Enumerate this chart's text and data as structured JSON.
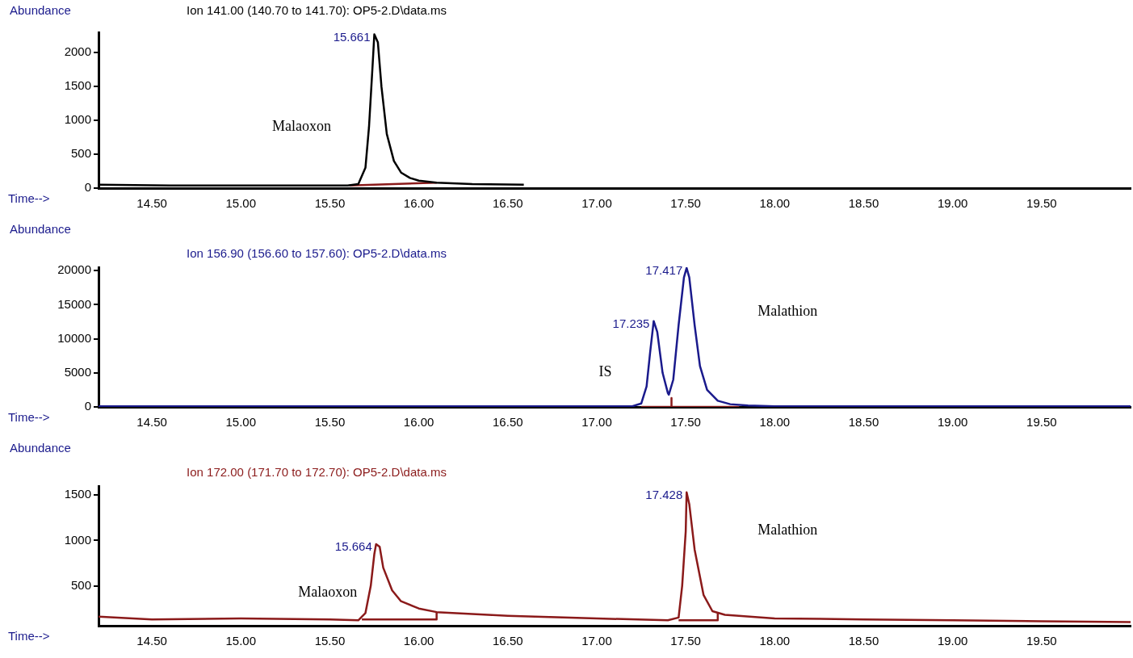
{
  "chart_data": [
    {
      "type": "line",
      "title": "Ion 141.00 (140.70 to 141.70): OP5-2.D\\data.ms",
      "xlabel": "Time-->",
      "ylabel": "Abundance",
      "xlim": [
        14.2,
        20.0
      ],
      "xticks": [
        {
          "value": 14.5,
          "label": "14.50"
        },
        {
          "value": 15.0,
          "label": "15.00"
        },
        {
          "value": 15.5,
          "label": "15.50"
        },
        {
          "value": 16.0,
          "label": "16.00"
        },
        {
          "value": 16.5,
          "label": "16.50"
        },
        {
          "value": 17.0,
          "label": "17.00"
        },
        {
          "value": 17.5,
          "label": "17.50"
        },
        {
          "value": 18.0,
          "label": "18.00"
        },
        {
          "value": 18.5,
          "label": "18.50"
        },
        {
          "value": 19.0,
          "label": "19.00"
        },
        {
          "value": 19.5,
          "label": "19.50"
        }
      ],
      "ylim": [
        0,
        2300
      ],
      "yticks": [
        0,
        500,
        1000,
        1500,
        2000
      ],
      "grid": false,
      "legend": false,
      "series": [
        {
          "color": "#000000",
          "x": [
            14.2,
            14.6,
            15.0,
            15.4,
            15.6,
            15.66,
            15.7,
            15.72,
            15.74,
            15.75,
            15.77,
            15.79,
            15.82,
            15.86,
            15.9,
            15.95,
            16.0,
            16.1,
            16.3,
            16.59
          ],
          "values": [
            50,
            40,
            40,
            40,
            40,
            60,
            300,
            900,
            1800,
            2270,
            2150,
            1500,
            800,
            400,
            230,
            150,
            110,
            80,
            60,
            50
          ]
        },
        {
          "color": "#8b1a1a",
          "x": [
            15.61,
            16.1
          ],
          "values": [
            40,
            80
          ]
        }
      ],
      "annotations": [
        {
          "text": "15.661",
          "x": 15.75,
          "y": 2270
        },
        "Malaoxon"
      ]
    },
    {
      "type": "line",
      "title": "Ion 156.90 (156.60 to 157.60): OP5-2.D\\data.ms",
      "xlabel": "Time-->",
      "ylabel": "Abundance",
      "xlim": [
        14.2,
        20.0
      ],
      "xticks": [
        {
          "value": 14.5,
          "label": "14.50"
        },
        {
          "value": 15.0,
          "label": "15.00"
        },
        {
          "value": 15.5,
          "label": "15.50"
        },
        {
          "value": 16.0,
          "label": "16.00"
        },
        {
          "value": 16.5,
          "label": "16.50"
        },
        {
          "value": 17.0,
          "label": "17.00"
        },
        {
          "value": 17.5,
          "label": "17.50"
        },
        {
          "value": 18.0,
          "label": "18.00"
        },
        {
          "value": 18.5,
          "label": "18.50"
        },
        {
          "value": 19.0,
          "label": "19.00"
        },
        {
          "value": 19.5,
          "label": "19.50"
        }
      ],
      "ylim": [
        0,
        20500
      ],
      "yticks": [
        0,
        5000,
        10000,
        15000,
        20000
      ],
      "grid": false,
      "legend": false,
      "series": [
        {
          "color": "#1a1a8c",
          "x": [
            14.2,
            15.0,
            16.0,
            17.0,
            17.2,
            17.25,
            17.28,
            17.3,
            17.32,
            17.34,
            17.37,
            17.4,
            17.405,
            17.43,
            17.46,
            17.49,
            17.505,
            17.52,
            17.55,
            17.58,
            17.62,
            17.68,
            17.75,
            17.85,
            18.0,
            20.0
          ],
          "values": [
            100,
            100,
            100,
            100,
            100,
            500,
            3000,
            8000,
            12600,
            11000,
            5000,
            2000,
            1800,
            4000,
            12000,
            19000,
            20400,
            19000,
            12000,
            6000,
            2500,
            900,
            400,
            200,
            100,
            100
          ]
        },
        {
          "color": "#8b1a1a",
          "x": [
            17.25,
            17.42,
            17.42,
            17.42,
            17.8
          ],
          "values": [
            0,
            0,
            1300,
            0,
            0
          ]
        }
      ],
      "annotations": [
        {
          "text": "17.235",
          "x": 17.32,
          "y": 12600
        },
        {
          "text": "17.417",
          "x": 17.505,
          "y": 20400
        },
        "IS",
        "Malathion"
      ]
    },
    {
      "type": "line",
      "title": "Ion 172.00 (171.70 to 172.70): OP5-2.D\\data.ms",
      "xlabel": "Time-->",
      "ylabel": "Abundance",
      "xlim": [
        14.2,
        20.0
      ],
      "xticks": [
        {
          "value": 14.5,
          "label": "14.50"
        },
        {
          "value": 15.0,
          "label": "15.00"
        },
        {
          "value": 15.5,
          "label": "15.50"
        },
        {
          "value": 16.0,
          "label": "16.00"
        },
        {
          "value": 16.5,
          "label": "16.50"
        },
        {
          "value": 17.0,
          "label": "17.00"
        },
        {
          "value": 17.5,
          "label": "17.50"
        },
        {
          "value": 18.0,
          "label": "18.00"
        },
        {
          "value": 18.5,
          "label": "18.50"
        },
        {
          "value": 19.0,
          "label": "19.00"
        },
        {
          "value": 19.5,
          "label": "19.50"
        }
      ],
      "ylim": [
        60,
        1600
      ],
      "yticks": [
        500,
        1000,
        1500
      ],
      "grid": false,
      "legend": false,
      "series": [
        {
          "color": "#8b1a1a",
          "x": [
            14.2,
            14.5,
            15.0,
            15.5,
            15.66,
            15.7,
            15.73,
            15.75,
            15.76,
            15.78,
            15.8,
            15.85,
            15.9,
            16.0,
            16.1,
            16.5,
            17.0,
            17.4,
            17.46,
            17.48,
            17.5,
            17.505,
            17.52,
            17.55,
            17.6,
            17.65,
            17.72,
            18.0,
            18.5,
            19.0,
            19.5,
            20.0
          ],
          "values": [
            160,
            130,
            140,
            130,
            120,
            200,
            500,
            850,
            960,
            930,
            700,
            450,
            330,
            250,
            210,
            170,
            140,
            120,
            150,
            500,
            1100,
            1530,
            1400,
            900,
            400,
            220,
            180,
            140,
            130,
            120,
            110,
            100
          ]
        },
        {
          "color": "#8b1a1a",
          "x": [
            15.68,
            16.1,
            16.1
          ],
          "values": [
            130,
            130,
            210
          ]
        },
        {
          "color": "#8b1a1a",
          "x": [
            17.46,
            17.68,
            17.68
          ],
          "values": [
            120,
            120,
            200
          ]
        }
      ],
      "annotations": [
        {
          "text": "15.664",
          "x": 15.76,
          "y": 960
        },
        {
          "text": "17.428",
          "x": 17.505,
          "y": 1530
        },
        "Malaoxon",
        "Malathion"
      ]
    }
  ]
}
